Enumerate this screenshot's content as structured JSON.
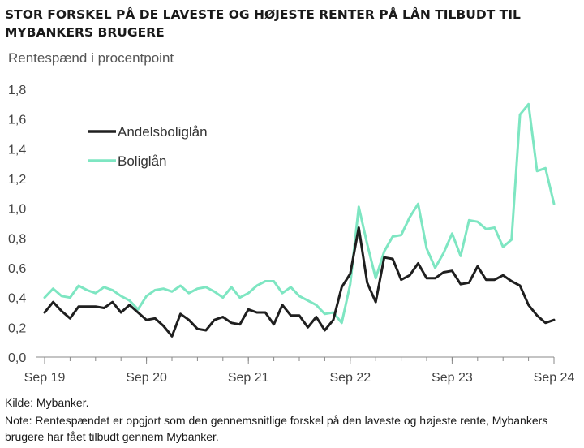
{
  "title": "STOR FORSKEL PÅ DE LAVESTE OG HØJESTE RENTER PÅ LÅN TILBUDT TIL MYBANKERS BRUGERE",
  "subtitle": "Rentespænd i procentpoint",
  "source": "Kilde: Mybanker.",
  "note": "Note: Rentespændet er opgjort som den gennemsnitlige forskel på den laveste og højeste rente, Mybankers brugere har fået tilbudt gennem Mybanker.",
  "colors": {
    "andelsboliglaan": "#1f1f1f",
    "boliglaan": "#7ee6c2",
    "axis": "#888888"
  },
  "chart_data": {
    "type": "line",
    "title": "STOR FORSKEL PÅ DE LAVESTE OG HØJESTE RENTER PÅ LÅN TILBUDT TIL MYBANKERS BRUGERE",
    "ylabel": "Rentespænd i procentpoint",
    "xlabel": "",
    "ylim": [
      0,
      1.8
    ],
    "yticks": [
      "0,0",
      "0,2",
      "0,4",
      "0,6",
      "0,8",
      "1,0",
      "1,2",
      "1,4",
      "1,6",
      "1,8"
    ],
    "xticks": [
      "Sep 19",
      "Sep 20",
      "Sep 21",
      "Sep 22",
      "Sep 23",
      "Sep 24"
    ],
    "x_start": "2019-09",
    "x_end": "2024-09",
    "legend_position": "top-left",
    "grid": false,
    "x": [
      "2019-09",
      "2019-10",
      "2019-11",
      "2019-12",
      "2020-01",
      "2020-02",
      "2020-03",
      "2020-04",
      "2020-05",
      "2020-06",
      "2020-07",
      "2020-08",
      "2020-09",
      "2020-10",
      "2020-11",
      "2020-12",
      "2021-01",
      "2021-02",
      "2021-03",
      "2021-04",
      "2021-05",
      "2021-06",
      "2021-07",
      "2021-08",
      "2021-09",
      "2021-10",
      "2021-11",
      "2021-12",
      "2022-01",
      "2022-02",
      "2022-03",
      "2022-04",
      "2022-05",
      "2022-06",
      "2022-07",
      "2022-08",
      "2022-09",
      "2022-10",
      "2022-11",
      "2022-12",
      "2023-01",
      "2023-02",
      "2023-03",
      "2023-04",
      "2023-05",
      "2023-06",
      "2023-07",
      "2023-08",
      "2023-09",
      "2023-10",
      "2023-11",
      "2023-12",
      "2024-01",
      "2024-02",
      "2024-03",
      "2024-04",
      "2024-05",
      "2024-06",
      "2024-07",
      "2024-08",
      "2024-09"
    ],
    "series": [
      {
        "name": "Andelsboliglån",
        "values": [
          0.3,
          0.37,
          0.31,
          0.26,
          0.34,
          0.34,
          0.34,
          0.33,
          0.37,
          0.3,
          0.35,
          0.3,
          0.25,
          0.26,
          0.21,
          0.14,
          0.29,
          0.25,
          0.19,
          0.18,
          0.25,
          0.27,
          0.23,
          0.22,
          0.32,
          0.3,
          0.3,
          0.22,
          0.35,
          0.28,
          0.28,
          0.2,
          0.27,
          0.18,
          0.25,
          0.47,
          0.56,
          0.87,
          0.5,
          0.37,
          0.67,
          0.66,
          0.52,
          0.55,
          0.63,
          0.53,
          0.53,
          0.57,
          0.58,
          0.49,
          0.5,
          0.61,
          0.52,
          0.52,
          0.55,
          0.51,
          0.48,
          0.35,
          0.28,
          0.23,
          0.25
        ]
      },
      {
        "name": "Boliglån",
        "values": [
          0.4,
          0.46,
          0.41,
          0.4,
          0.48,
          0.45,
          0.43,
          0.47,
          0.45,
          0.41,
          0.38,
          0.32,
          0.41,
          0.45,
          0.46,
          0.44,
          0.48,
          0.43,
          0.46,
          0.47,
          0.44,
          0.4,
          0.47,
          0.4,
          0.43,
          0.48,
          0.51,
          0.51,
          0.43,
          0.47,
          0.41,
          0.38,
          0.35,
          0.29,
          0.3,
          0.23,
          0.49,
          1.01,
          0.76,
          0.53,
          0.71,
          0.81,
          0.82,
          0.94,
          1.03,
          0.73,
          0.6,
          0.7,
          0.83,
          0.68,
          0.92,
          0.91,
          0.86,
          0.87,
          0.74,
          0.79,
          1.63,
          1.7,
          1.25,
          1.27,
          1.03
        ]
      }
    ]
  }
}
